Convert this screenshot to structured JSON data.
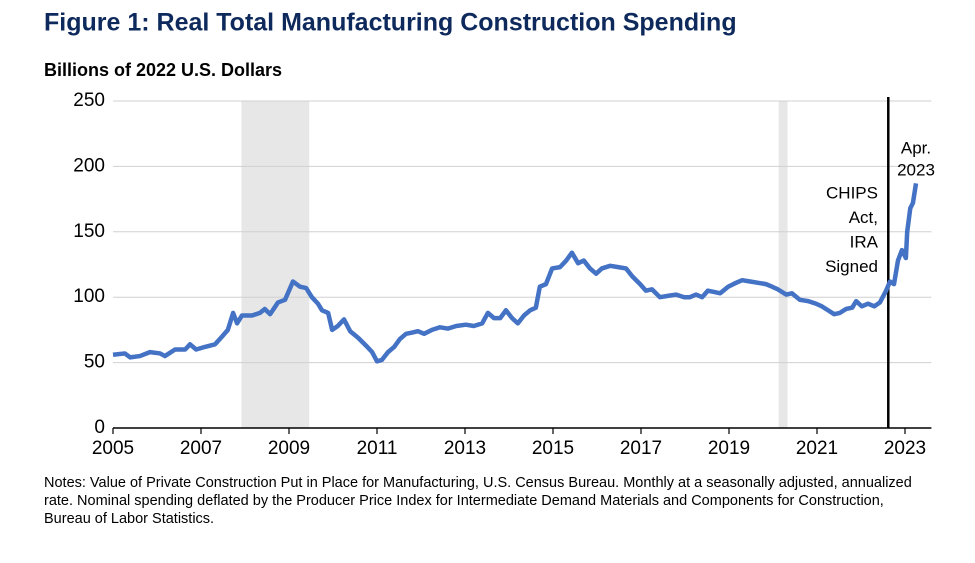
{
  "chart_data": {
    "type": "line",
    "title": "Figure 1: Real Total Manufacturing Construction Spending",
    "subtitle": "Billions of 2022 U.S. Dollars",
    "notes": "Notes: Value of Private Construction Put in Place for Manufacturing, U.S. Census Bureau. Monthly at a seasonally adjusted, annualized rate. Nominal spending deflated by the Producer Price Index for Intermediate Demand Materials and Components for Construction, Bureau of Labor Statistics.",
    "x": [
      2005.0,
      2005.27,
      2005.39,
      2005.61,
      2005.84,
      2006.07,
      2006.18,
      2006.41,
      2006.64,
      2006.75,
      2006.89,
      2007.09,
      2007.32,
      2007.48,
      2007.61,
      2007.73,
      2007.82,
      2007.93,
      2008.16,
      2008.34,
      2008.45,
      2008.57,
      2008.75,
      2008.91,
      2009.09,
      2009.25,
      2009.39,
      2009.52,
      2009.66,
      2009.75,
      2009.89,
      2009.98,
      2010.11,
      2010.25,
      2010.39,
      2010.57,
      2010.75,
      2010.89,
      2011.0,
      2011.11,
      2011.25,
      2011.39,
      2011.52,
      2011.66,
      2011.8,
      2011.93,
      2012.07,
      2012.25,
      2012.43,
      2012.61,
      2012.8,
      2013.02,
      2013.2,
      2013.39,
      2013.52,
      2013.66,
      2013.8,
      2013.93,
      2014.07,
      2014.2,
      2014.34,
      2014.48,
      2014.61,
      2014.7,
      2014.84,
      2014.98,
      2015.16,
      2015.3,
      2015.43,
      2015.57,
      2015.7,
      2015.84,
      2015.98,
      2016.11,
      2016.3,
      2016.48,
      2016.66,
      2016.8,
      2016.98,
      2017.11,
      2017.25,
      2017.43,
      2017.61,
      2017.8,
      2017.98,
      2018.11,
      2018.25,
      2018.39,
      2018.52,
      2018.66,
      2018.8,
      2018.98,
      2019.16,
      2019.3,
      2019.48,
      2019.66,
      2019.84,
      2019.98,
      2020.11,
      2020.3,
      2020.43,
      2020.61,
      2020.8,
      2020.98,
      2021.11,
      2021.25,
      2021.39,
      2021.52,
      2021.66,
      2021.8,
      2021.89,
      2022.02,
      2022.16,
      2022.3,
      2022.43,
      2022.57,
      2022.66,
      2022.75,
      2022.84,
      2022.93,
      2023.02,
      2023.05,
      2023.12,
      2023.18,
      2023.25
    ],
    "series": [
      {
        "color": "#4472c4",
        "values": [
          56,
          57,
          54,
          55,
          58,
          57,
          55,
          60,
          60,
          64,
          60,
          62,
          64,
          70,
          75,
          88,
          80,
          86,
          86,
          88,
          91,
          87,
          96,
          98,
          112,
          108,
          107,
          100,
          95,
          90,
          88,
          75,
          78,
          83,
          74,
          69,
          63,
          58,
          51,
          52,
          58,
          62,
          68,
          72,
          73,
          74,
          72,
          75,
          77,
          76,
          78,
          79,
          78,
          80,
          88,
          84,
          84,
          90,
          84,
          80,
          86,
          90,
          92,
          108,
          110,
          122,
          123,
          128,
          134,
          126,
          128,
          122,
          118,
          122,
          124,
          123,
          122,
          116,
          110,
          105,
          106,
          100,
          101,
          102,
          100,
          100,
          102,
          100,
          105,
          104,
          103,
          108,
          111,
          113,
          112,
          111,
          110,
          108,
          106,
          102,
          103,
          98,
          97,
          95,
          93,
          90,
          87,
          88,
          91,
          92,
          97,
          93,
          95,
          93,
          96,
          105,
          112,
          110,
          128,
          136,
          130,
          150,
          168,
          172,
          187
        ]
      }
    ],
    "xlim": [
      2005,
      2023.6
    ],
    "ylim": [
      0,
      250
    ],
    "xticks": [
      2005,
      2007,
      2009,
      2011,
      2013,
      2015,
      2017,
      2019,
      2021,
      2023
    ],
    "yticks": [
      0,
      50,
      100,
      150,
      200,
      250
    ],
    "grid": true,
    "shaded_periods": [
      [
        2007.92,
        2009.46
      ],
      [
        2020.13,
        2020.33
      ]
    ],
    "vline": 2022.62,
    "annotations": [
      {
        "lines": [
          "Apr.",
          "2023"
        ]
      },
      {
        "lines": [
          "CHIPS",
          "Act,",
          "IRA",
          "Signed"
        ]
      }
    ]
  }
}
